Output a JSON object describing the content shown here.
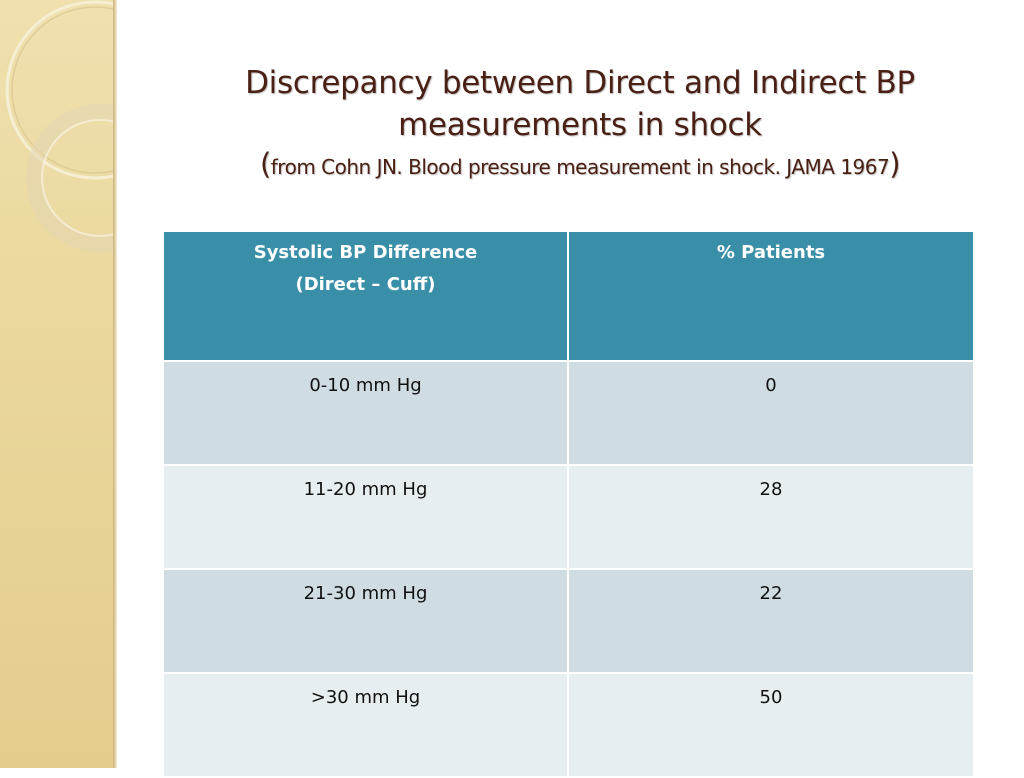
{
  "slide": {
    "title_line1": "Discrepancy between Direct and Indirect BP",
    "title_line2": "measurements in shock",
    "subtitle_open": "(",
    "subtitle": "from Cohn JN. Blood pressure measurement in shock. JAMA 1967",
    "subtitle_close": ")"
  },
  "table": {
    "headers": [
      {
        "line1": "Systolic BP  Difference",
        "line2": "(Direct – Cuff)"
      },
      {
        "line1": "% Patients",
        "line2": ""
      }
    ],
    "rows": [
      {
        "difference": "0-10 mm Hg",
        "percent": "0"
      },
      {
        "difference": "11-20 mm Hg",
        "percent": "28"
      },
      {
        "difference": "21-30 mm Hg",
        "percent": "22"
      },
      {
        "difference": ">30 mm Hg",
        "percent": "50"
      }
    ]
  },
  "theme": {
    "title_color": "#4a1f14",
    "header_bg": "#3a8fa8",
    "row_bg_odd": "#cfdde3",
    "row_bg_even": "#e7eef1",
    "side_band": "#ead79c"
  }
}
